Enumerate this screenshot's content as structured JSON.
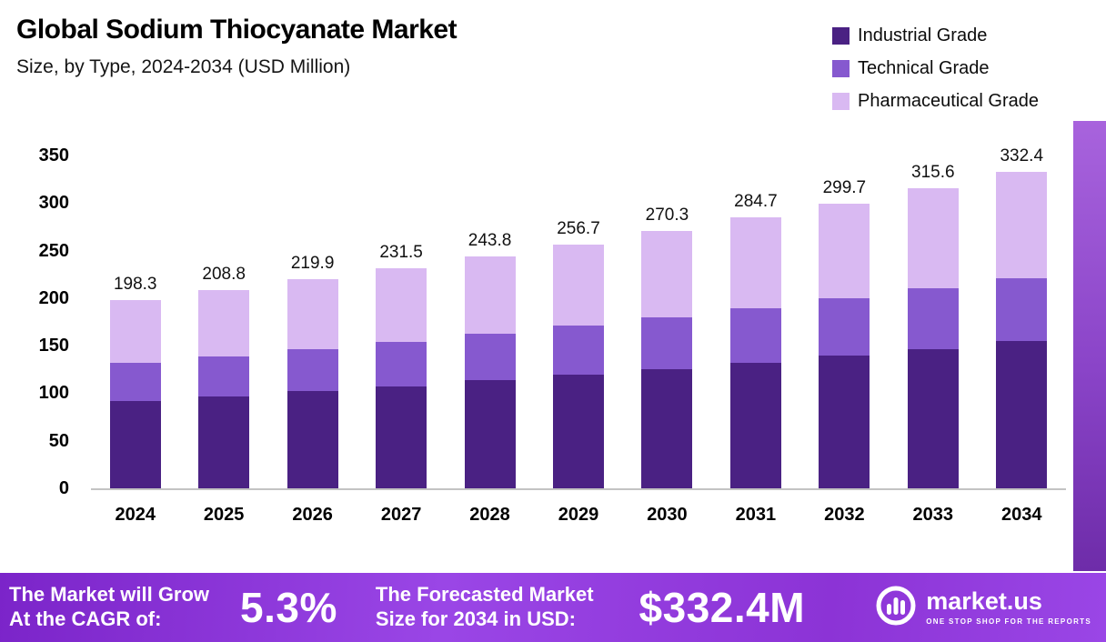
{
  "header": {
    "title": "Global Sodium Thiocyanate Market",
    "subtitle": "Size, by Type, 2024-2034 (USD Million)"
  },
  "legend": [
    {
      "label": "Industrial Grade",
      "color": "#4a2183"
    },
    {
      "label": "Technical Grade",
      "color": "#8659cf"
    },
    {
      "label": "Pharmaceutical Grade",
      "color": "#d9b9f2"
    }
  ],
  "chart_data": {
    "type": "bar",
    "stacked": true,
    "title": "Global Sodium Thiocyanate Market Size, by Type, 2024-2034 (USD Million)",
    "categories": [
      "2024",
      "2025",
      "2026",
      "2027",
      "2028",
      "2029",
      "2030",
      "2031",
      "2032",
      "2033",
      "2034"
    ],
    "series": [
      {
        "name": "Industrial Grade",
        "color": "#4a2183",
        "values": [
          92.2,
          97.1,
          102.3,
          107.6,
          113.4,
          119.4,
          125.7,
          132.4,
          139.4,
          146.8,
          154.6
        ]
      },
      {
        "name": "Technical Grade",
        "color": "#8659cf",
        "values": [
          39.7,
          41.9,
          44.1,
          46.4,
          48.9,
          51.5,
          54.2,
          57.1,
          60.1,
          63.3,
          66.6
        ]
      },
      {
        "name": "Pharmaceutical Grade",
        "color": "#d9b9f2",
        "values": [
          66.4,
          69.8,
          73.5,
          77.5,
          81.5,
          85.8,
          90.4,
          95.2,
          100.2,
          105.5,
          111.2
        ]
      }
    ],
    "totals": [
      198.3,
      208.8,
      219.9,
      231.5,
      243.8,
      256.7,
      270.3,
      284.7,
      299.7,
      315.6,
      332.4
    ],
    "ylim": [
      0,
      350
    ],
    "yticks": [
      0,
      50,
      100,
      150,
      200,
      250,
      300,
      350
    ],
    "xlabel": "",
    "ylabel": "USD Million",
    "grid": false,
    "legend_position": "top-right"
  },
  "footer": {
    "cagr_label_line1": "The Market will Grow",
    "cagr_label_line2": "At the CAGR of:",
    "cagr_value": "5.3%",
    "forecast_label_line1": "The Forecasted Market",
    "forecast_label_line2": "Size for 2034 in USD:",
    "forecast_value": "$332.4M",
    "brand": "market.us",
    "brand_tagline": "ONE STOP SHOP FOR THE REPORTS"
  }
}
